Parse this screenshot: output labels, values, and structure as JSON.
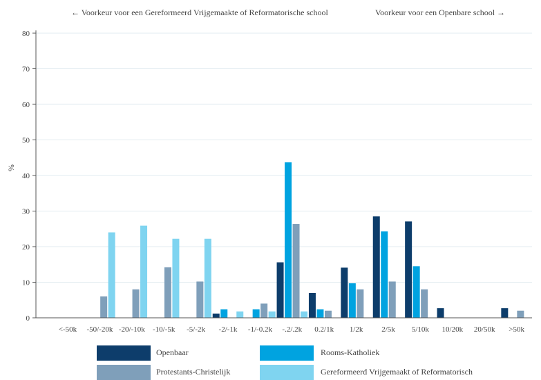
{
  "annotations": {
    "left": "← Voorkeur voor een Gereformeerd Vrijgemaakte of Reformatorische school",
    "right": "Voorkeur voor een Openbare school →"
  },
  "chart_data": {
    "type": "bar",
    "ylabel": "%",
    "xlabel": "",
    "ylim": [
      0,
      80
    ],
    "yticks": [
      0,
      10,
      20,
      30,
      40,
      50,
      60,
      70,
      80
    ],
    "grid": true,
    "legend_position": "bottom",
    "categories": [
      "<-50k",
      "-50/-20k",
      "-20/-10k",
      "-10/-5k",
      "-5/-2k",
      "-2/-1k",
      "-1/-0.2k",
      "-.2/.2k",
      "0.2/1k",
      "1/2k",
      "2/5k",
      "5/10k",
      "10/20k",
      "20/50k",
      ">50k"
    ],
    "series": [
      {
        "name": "Openbaar",
        "color": "#0d3d6b",
        "values": [
          0,
          0,
          0,
          0,
          0,
          1.2,
          0,
          15.6,
          7,
          14.1,
          28.5,
          27.1,
          2.7,
          0,
          2.7
        ]
      },
      {
        "name": "Rooms-Katholiek",
        "color": "#00a3e0",
        "values": [
          0,
          0,
          0,
          0,
          0,
          2.4,
          2.4,
          43.7,
          2.4,
          9.7,
          24.3,
          14.5,
          0,
          0,
          0
        ]
      },
      {
        "name": "Protestants-Christelijk",
        "color": "#7f9fba",
        "values": [
          0,
          6,
          8,
          14.2,
          10.2,
          0,
          4,
          26.4,
          2,
          8,
          10.2,
          8,
          0,
          0,
          2
        ]
      },
      {
        "name": "Gereformeerd Vrijgemaakt of Reformatorisch",
        "color": "#7fd4f0",
        "values": [
          0,
          24,
          25.9,
          22.2,
          22.2,
          1.8,
          1.8,
          1.8,
          0,
          0,
          0,
          0,
          0,
          0,
          0
        ]
      }
    ]
  }
}
